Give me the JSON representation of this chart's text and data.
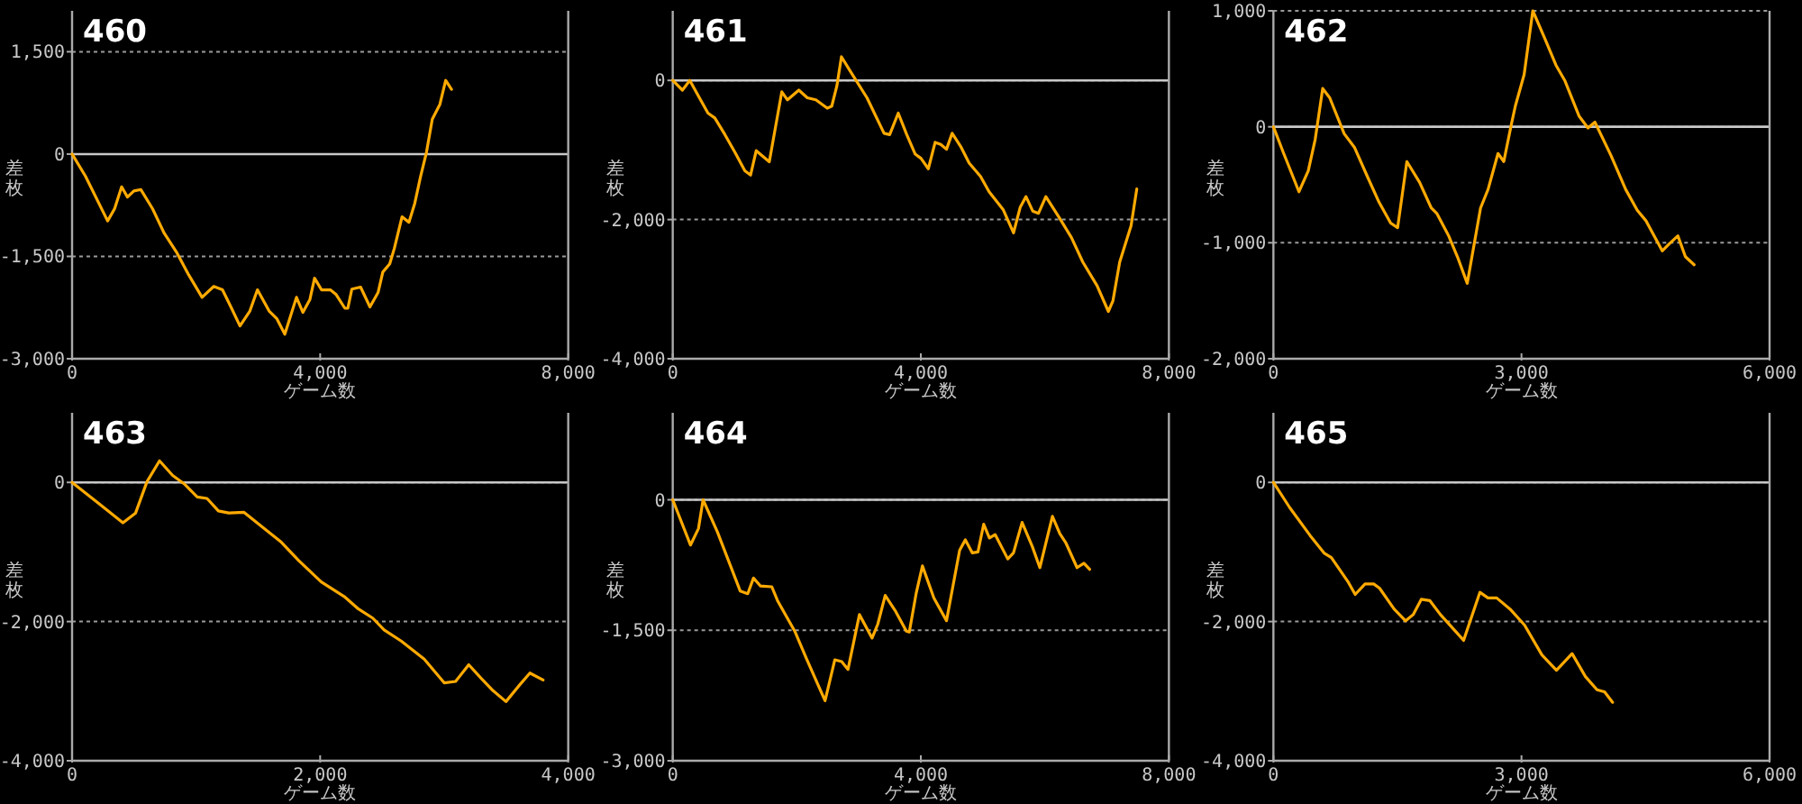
{
  "chart_data": [
    {
      "type": "line",
      "title": "460",
      "xlabel": "ゲーム数",
      "ylabel": "差枚",
      "grid": "y",
      "xlim": [
        0,
        8000
      ],
      "ylim": [
        -3000,
        2100
      ],
      "xticks": [
        {
          "value": 0,
          "label": "0"
        },
        {
          "value": 4000,
          "label": "4,000"
        },
        {
          "value": 8000,
          "label": "8,000"
        }
      ],
      "yticks": [
        {
          "value": -3000,
          "label": "-3,000"
        },
        {
          "value": -1500,
          "label": "-1,500"
        },
        {
          "value": 0,
          "label": "0"
        },
        {
          "value": 1500,
          "label": "1,500"
        }
      ],
      "ref_lines": [
        {
          "axis": "y",
          "value": 0,
          "color": "#c8c8c8"
        }
      ],
      "series": [
        {
          "color": "#ffaa00",
          "x": [
            0,
            216,
            573,
            686,
            799,
            893,
            996,
            1109,
            1297,
            1485,
            1692,
            1880,
            2096,
            2284,
            2425,
            2566,
            2707,
            2867,
            2989,
            3177,
            3299,
            3430,
            3618,
            3722,
            3835,
            3910,
            4023,
            4164,
            4258,
            4399,
            4446,
            4511,
            4652,
            4803,
            4934,
            5010,
            5122,
            5197,
            5320,
            5432,
            5526,
            5620,
            5714,
            5808,
            5931,
            6024,
            6118
          ],
          "values": [
            0,
            -325,
            -980,
            -800,
            -480,
            -630,
            -540,
            -520,
            -800,
            -1160,
            -1450,
            -1770,
            -2100,
            -1940,
            -1990,
            -2250,
            -2520,
            -2300,
            -1990,
            -2300,
            -2410,
            -2640,
            -2100,
            -2320,
            -2130,
            -1820,
            -1990,
            -1990,
            -2060,
            -2260,
            -2260,
            -1980,
            -1950,
            -2240,
            -2030,
            -1730,
            -1610,
            -1380,
            -920,
            -1000,
            -720,
            -325,
            25,
            510,
            730,
            1080,
            950
          ]
        }
      ]
    },
    {
      "type": "line",
      "title": "461",
      "xlabel": "ゲーム数",
      "ylabel": "差枚",
      "grid": "y",
      "xlim": [
        0,
        8000
      ],
      "ylim": [
        -4000,
        1000
      ],
      "xticks": [
        {
          "value": 0,
          "label": "0"
        },
        {
          "value": 4000,
          "label": "4,000"
        },
        {
          "value": 8000,
          "label": "8,000"
        }
      ],
      "yticks": [
        {
          "value": -4000,
          "label": "-4,000"
        },
        {
          "value": -2000,
          "label": "-2,000"
        },
        {
          "value": 0,
          "label": "0"
        }
      ],
      "ref_lines": [
        {
          "axis": "y",
          "value": 0,
          "color": "#c8c8c8"
        }
      ],
      "series": [
        {
          "color": "#ffaa00",
          "x": [
            0,
            156,
            275,
            430,
            568,
            678,
            842,
            1007,
            1163,
            1255,
            1346,
            1557,
            1758,
            1850,
            2033,
            2170,
            2308,
            2491,
            2564,
            2646,
            2720,
            2857,
            3132,
            3407,
            3498,
            3636,
            3773,
            3910,
            4002,
            4121,
            4231,
            4322,
            4414,
            4505,
            4643,
            4780,
            4963,
            5101,
            5330,
            5495,
            5604,
            5696,
            5806,
            5897,
            6016,
            6245,
            6429,
            6612,
            6841,
            7024,
            7097,
            7207,
            7390,
            7482
          ],
          "values": [
            0,
            -140,
            0,
            -250,
            -470,
            -540,
            -780,
            -1040,
            -1300,
            -1360,
            -1010,
            -1170,
            -165,
            -280,
            -140,
            -250,
            -280,
            -400,
            -370,
            -80,
            340,
            140,
            -250,
            -760,
            -780,
            -470,
            -780,
            -1060,
            -1120,
            -1270,
            -890,
            -920,
            -990,
            -760,
            -950,
            -1190,
            -1380,
            -1600,
            -1860,
            -2190,
            -1820,
            -1670,
            -1880,
            -1910,
            -1670,
            -1990,
            -2260,
            -2610,
            -2950,
            -3320,
            -3170,
            -2610,
            -2090,
            -1560
          ]
        }
      ]
    },
    {
      "type": "line",
      "title": "462",
      "xlabel": "ゲーム数",
      "ylabel": "差枚",
      "grid": "y",
      "xlim": [
        0,
        6000
      ],
      "ylim": [
        -2000,
        1000
      ],
      "xticks": [
        {
          "value": 0,
          "label": "0"
        },
        {
          "value": 3000,
          "label": "3,000"
        },
        {
          "value": 6000,
          "label": "6,000"
        }
      ],
      "yticks": [
        {
          "value": -2000,
          "label": "-2,000"
        },
        {
          "value": -1000,
          "label": "-1,000"
        },
        {
          "value": 0,
          "label": "0"
        },
        {
          "value": 1000,
          "label": "1,000"
        }
      ],
      "ref_lines": [
        {
          "axis": "y",
          "value": 0,
          "color": "#c8c8c8"
        }
      ],
      "series": [
        {
          "color": "#ffaa00",
          "x": [
            0,
            119,
            309,
            421,
            505,
            596,
            681,
            856,
            982,
            1137,
            1277,
            1418,
            1502,
            1614,
            1768,
            1909,
            1979,
            2119,
            2225,
            2344,
            2505,
            2596,
            2716,
            2786,
            2877,
            2926,
            3032,
            3137,
            3277,
            3418,
            3523,
            3698,
            3804,
            3888,
            4084,
            4260,
            4400,
            4505,
            4702,
            4786,
            4891,
            4982,
            5088
          ],
          "values": [
            0,
            -220,
            -560,
            -380,
            -110,
            330,
            250,
            -60,
            -180,
            -430,
            -650,
            -830,
            -870,
            -300,
            -480,
            -700,
            -750,
            -940,
            -1120,
            -1350,
            -700,
            -540,
            -230,
            -300,
            20,
            180,
            450,
            1000,
            770,
            530,
            400,
            90,
            -10,
            40,
            -250,
            -540,
            -720,
            -810,
            -1070,
            -1010,
            -940,
            -1120,
            -1190
          ]
        }
      ]
    },
    {
      "type": "line",
      "title": "463",
      "xlabel": "ゲーム数",
      "ylabel": "差枚",
      "grid": "y",
      "xlim": [
        0,
        4000
      ],
      "ylim": [
        -4000,
        1000
      ],
      "xticks": [
        {
          "value": 0,
          "label": "0"
        },
        {
          "value": 2000,
          "label": "2,000"
        },
        {
          "value": 4000,
          "label": "4,000"
        }
      ],
      "yticks": [
        {
          "value": -4000,
          "label": "-4,000"
        },
        {
          "value": -2000,
          "label": "-2,000"
        },
        {
          "value": 0,
          "label": "0"
        }
      ],
      "ref_lines": [
        {
          "axis": "y",
          "value": 0,
          "color": "#c8c8c8"
        }
      ],
      "series": [
        {
          "color": "#ffaa00",
          "x": [
            0,
            212,
            410,
            512,
            604,
            705,
            811,
            903,
            1009,
            1088,
            1180,
            1263,
            1387,
            1548,
            1687,
            1825,
            2009,
            2194,
            2309,
            2424,
            2516,
            2654,
            2839,
            3000,
            3092,
            3198,
            3300,
            3392,
            3498,
            3599,
            3691,
            3797
          ],
          "values": [
            0,
            -300,
            -580,
            -440,
            10,
            310,
            100,
            -20,
            -210,
            -230,
            -410,
            -440,
            -430,
            -660,
            -860,
            -1120,
            -1430,
            -1640,
            -1820,
            -1950,
            -2120,
            -2280,
            -2540,
            -2880,
            -2860,
            -2620,
            -2820,
            -2990,
            -3150,
            -2930,
            -2740,
            -2840
          ]
        }
      ]
    },
    {
      "type": "line",
      "title": "464",
      "xlabel": "ゲーム数",
      "ylabel": "差枚",
      "grid": "y",
      "xlim": [
        0,
        8000
      ],
      "ylim": [
        -3000,
        1000
      ],
      "xticks": [
        {
          "value": 0,
          "label": "0"
        },
        {
          "value": 4000,
          "label": "4,000"
        },
        {
          "value": 8000,
          "label": "8,000"
        }
      ],
      "yticks": [
        {
          "value": -3000,
          "label": "-3,000"
        },
        {
          "value": -1500,
          "label": "-1,500"
        },
        {
          "value": 0,
          "label": "0"
        }
      ],
      "ref_lines": [
        {
          "axis": "y",
          "value": 0,
          "color": "#c8c8c8"
        }
      ],
      "series": [
        {
          "color": "#ffaa00",
          "x": [
            0,
            286,
            415,
            489,
            720,
            1089,
            1209,
            1302,
            1413,
            1597,
            1690,
            1967,
            2152,
            2456,
            2613,
            2724,
            2826,
            3010,
            3214,
            3306,
            3426,
            3583,
            3767,
            3814,
            3924,
            4026,
            4211,
            4414,
            4626,
            4718,
            4829,
            4921,
            5014,
            5106,
            5198,
            5402,
            5494,
            5633,
            5799,
            5919,
            6122,
            6242,
            6335,
            6519,
            6630,
            6722
          ],
          "values": [
            0,
            -520,
            -330,
            0,
            -370,
            -1050,
            -1080,
            -900,
            -990,
            -1000,
            -1160,
            -1510,
            -1820,
            -2310,
            -1840,
            -1860,
            -1950,
            -1320,
            -1590,
            -1430,
            -1100,
            -1270,
            -1510,
            -1520,
            -1080,
            -760,
            -1130,
            -1390,
            -580,
            -460,
            -610,
            -600,
            -280,
            -440,
            -400,
            -680,
            -610,
            -260,
            -540,
            -780,
            -190,
            -390,
            -490,
            -780,
            -730,
            -800
          ]
        }
      ]
    },
    {
      "type": "line",
      "title": "465",
      "xlabel": "ゲーム数",
      "ylabel": "差枚",
      "grid": "y",
      "xlim": [
        0,
        6000
      ],
      "ylim": [
        -4000,
        1000
      ],
      "xticks": [
        {
          "value": 0,
          "label": "0"
        },
        {
          "value": 3000,
          "label": "3,000"
        },
        {
          "value": 6000,
          "label": "6,000"
        }
      ],
      "yticks": [
        {
          "value": -4000,
          "label": "-4,000"
        },
        {
          "value": -2000,
          "label": "-2,000"
        },
        {
          "value": 0,
          "label": "0"
        }
      ],
      "ref_lines": [
        {
          "axis": "y",
          "value": 0,
          "color": "#c8c8c8"
        }
      ],
      "series": [
        {
          "color": "#ffaa00",
          "x": [
            0,
            196,
            442,
            617,
            701,
            898,
            989,
            1108,
            1213,
            1283,
            1459,
            1599,
            1690,
            1788,
            1893,
            2020,
            2300,
            2497,
            2595,
            2700,
            2861,
            3037,
            3247,
            3423,
            3612,
            3773,
            3913,
            4004,
            4102
          ],
          "values": [
            0,
            -360,
            -760,
            -1020,
            -1080,
            -1420,
            -1610,
            -1460,
            -1460,
            -1520,
            -1820,
            -1990,
            -1900,
            -1680,
            -1700,
            -1900,
            -2270,
            -1580,
            -1660,
            -1660,
            -1820,
            -2050,
            -2480,
            -2700,
            -2460,
            -2790,
            -2980,
            -3010,
            -3160
          ]
        }
      ]
    }
  ]
}
